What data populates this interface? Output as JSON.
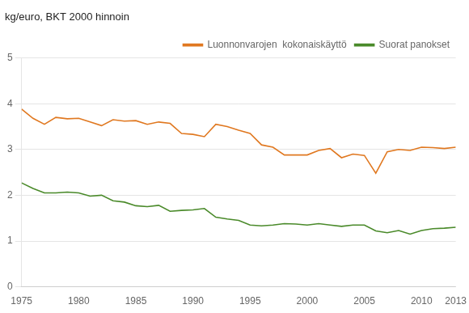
{
  "chart_data": {
    "type": "line",
    "title": "kg/euro, BKT 2000 hinnoin",
    "x": [
      1975,
      1976,
      1977,
      1978,
      1979,
      1980,
      1981,
      1982,
      1983,
      1984,
      1985,
      1986,
      1987,
      1988,
      1989,
      1990,
      1991,
      1992,
      1993,
      1994,
      1995,
      1996,
      1997,
      1998,
      1999,
      2000,
      2001,
      2002,
      2003,
      2004,
      2005,
      2006,
      2007,
      2008,
      2009,
      2010,
      2011,
      2012,
      2013
    ],
    "series": [
      {
        "name": "Luonnonvarojen  kokonaiskäyttö",
        "color": "#E07820",
        "values": [
          3.88,
          3.68,
          3.55,
          3.7,
          3.67,
          3.68,
          3.6,
          3.52,
          3.65,
          3.62,
          3.63,
          3.55,
          3.6,
          3.57,
          3.35,
          3.33,
          3.28,
          3.55,
          3.5,
          3.42,
          3.35,
          3.1,
          3.05,
          2.88,
          2.88,
          2.88,
          2.98,
          3.02,
          2.82,
          2.9,
          2.87,
          2.48,
          2.95,
          3.0,
          2.98,
          3.05,
          3.04,
          3.02,
          3.05
        ]
      },
      {
        "name": "Suorat panokset",
        "color": "#4a8a2a",
        "values": [
          2.27,
          2.15,
          2.05,
          2.05,
          2.07,
          2.05,
          1.98,
          2.0,
          1.88,
          1.85,
          1.77,
          1.75,
          1.78,
          1.65,
          1.67,
          1.68,
          1.71,
          1.52,
          1.48,
          1.45,
          1.35,
          1.33,
          1.35,
          1.38,
          1.37,
          1.35,
          1.38,
          1.35,
          1.32,
          1.35,
          1.35,
          1.22,
          1.18,
          1.23,
          1.15,
          1.23,
          1.27,
          1.28,
          1.3
        ]
      }
    ],
    "xlim": [
      1975,
      2013
    ],
    "xticks": [
      1975,
      1980,
      1985,
      1990,
      1995,
      2000,
      2005,
      2010,
      2013
    ],
    "ylim": [
      0,
      5
    ],
    "yticks": [
      0,
      1,
      2,
      3,
      4,
      5
    ],
    "grid": "y",
    "legend": "upper right"
  }
}
